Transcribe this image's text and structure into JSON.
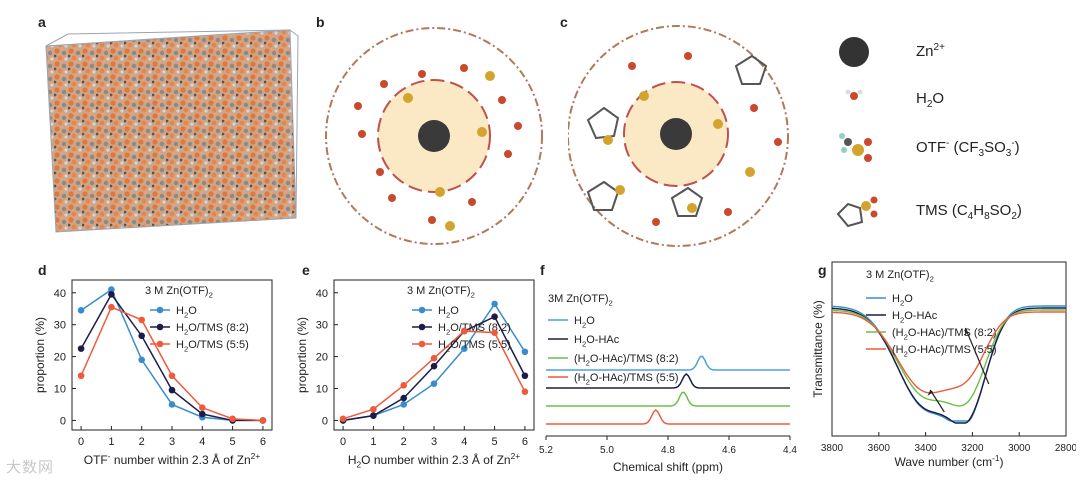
{
  "panel_labels": {
    "a": "a",
    "b": "b",
    "c": "c",
    "d": "d",
    "e": "e",
    "f": "f",
    "g": "g"
  },
  "legend_top": [
    {
      "name": "zn",
      "label": "Zn",
      "sup": "2+"
    },
    {
      "name": "h2o",
      "label": "H",
      "sub": "2",
      "tail": "O"
    },
    {
      "name": "otf",
      "label": "OTF",
      "sup": "-",
      "tail": " (CF",
      "sub2": "3",
      "tail2": "SO",
      "sub3": "3",
      "tail3": ")",
      "sup3": "-"
    },
    {
      "name": "tms",
      "label": "TMS (C",
      "sub": "4",
      "tail": "H",
      "sub2": "8",
      "tail2": "SO",
      "sub3": "2",
      "tail3": ")"
    }
  ],
  "colors": {
    "blue": "#3a8dcc",
    "navy": "#1c1c4a",
    "red": "#f05a3c",
    "green": "#6cbf4a",
    "cyan": "#4aa2d8"
  },
  "chart_data": [
    {
      "type": "line",
      "panel": "d",
      "title": "3 M Zn(OTF)2",
      "xlabel": "OTF- number within 2.3 Å of Zn2+",
      "ylabel": "proportion (%)",
      "x": [
        0,
        1,
        2,
        3,
        4,
        5,
        6
      ],
      "xlim": [
        -0.3,
        6.3
      ],
      "ylim": [
        -3,
        44
      ],
      "xticks": [
        0,
        1,
        2,
        3,
        4,
        5,
        6
      ],
      "yticks": [
        0,
        10,
        20,
        30,
        40
      ],
      "series": [
        {
          "name": "H2O",
          "color": "#3a8dcc",
          "values": [
            34.5,
            41,
            19,
            5,
            1,
            0,
            0
          ]
        },
        {
          "name": "H2O/TMS (8:2)",
          "color": "#1c1c4a",
          "values": [
            22.5,
            39.5,
            26.5,
            9.5,
            2,
            0,
            0
          ]
        },
        {
          "name": "H2O/TMS (5:5)",
          "color": "#f05a3c",
          "values": [
            14,
            35.5,
            31.5,
            14,
            4,
            0.5,
            0
          ]
        }
      ]
    },
    {
      "type": "line",
      "panel": "e",
      "title": "3 M Zn(OTF)2",
      "xlabel": "H2O number within 2.3 Å of Zn2+",
      "ylabel": "proportion (%)",
      "x": [
        0,
        1,
        2,
        3,
        4,
        5,
        6
      ],
      "xlim": [
        -0.3,
        6.3
      ],
      "ylim": [
        -3,
        44
      ],
      "xticks": [
        0,
        1,
        2,
        3,
        4,
        5,
        6
      ],
      "yticks": [
        0,
        10,
        20,
        30,
        40
      ],
      "series": [
        {
          "name": "H2O",
          "color": "#3a8dcc",
          "values": [
            0,
            1.5,
            5,
            11.5,
            22.5,
            36.5,
            21.5
          ]
        },
        {
          "name": "H2O/TMS (8:2)",
          "color": "#1c1c4a",
          "values": [
            0,
            1.5,
            7,
            17,
            28,
            32.5,
            14
          ]
        },
        {
          "name": "H2O/TMS (5:5)",
          "color": "#f05a3c",
          "values": [
            0.5,
            3.5,
            11,
            19.5,
            28,
            27.5,
            9
          ]
        }
      ]
    },
    {
      "type": "line",
      "panel": "f",
      "title": "3M Zn(OTF)2",
      "xlabel": "Chemical shift (ppm)",
      "ylabel": "",
      "xlim": [
        5.2,
        4.4
      ],
      "xticks": [
        5.2,
        5.0,
        4.8,
        4.6,
        4.4
      ],
      "series": [
        {
          "name": "H2O",
          "color": "#4aa2d8",
          "peak": 4.69,
          "offset": 3
        },
        {
          "name": "H2O-HAc",
          "color": "#1c1c4a",
          "peak": 4.74,
          "offset": 2
        },
        {
          "name": "(H2O-HAc)/TMS (8:2)",
          "color": "#6cbf4a",
          "peak": 4.75,
          "offset": 1
        },
        {
          "name": "(H2O-HAc)/TMS (5:5)",
          "color": "#f05a3c",
          "peak": 4.84,
          "offset": 0
        }
      ]
    },
    {
      "type": "line",
      "panel": "g",
      "title": "3 M Zn(OTF)2",
      "xlabel": "Wave number (cm-1)",
      "ylabel": "Transmittance (%)",
      "xlim": [
        3800,
        2800
      ],
      "xticks": [
        3800,
        3600,
        3400,
        3200,
        3000,
        2800
      ],
      "series": [
        {
          "name": "H2O",
          "color": "#3a8dcc"
        },
        {
          "name": "H2O-HAc",
          "color": "#1c1c4a"
        },
        {
          "name": "(H2O-HAc)/TMS (8:2)",
          "color": "#6cbf4a"
        },
        {
          "name": "(H2O-HAc)/TMS (5:5)",
          "color": "#f05a3c"
        }
      ]
    }
  ],
  "watermark": "大数网"
}
